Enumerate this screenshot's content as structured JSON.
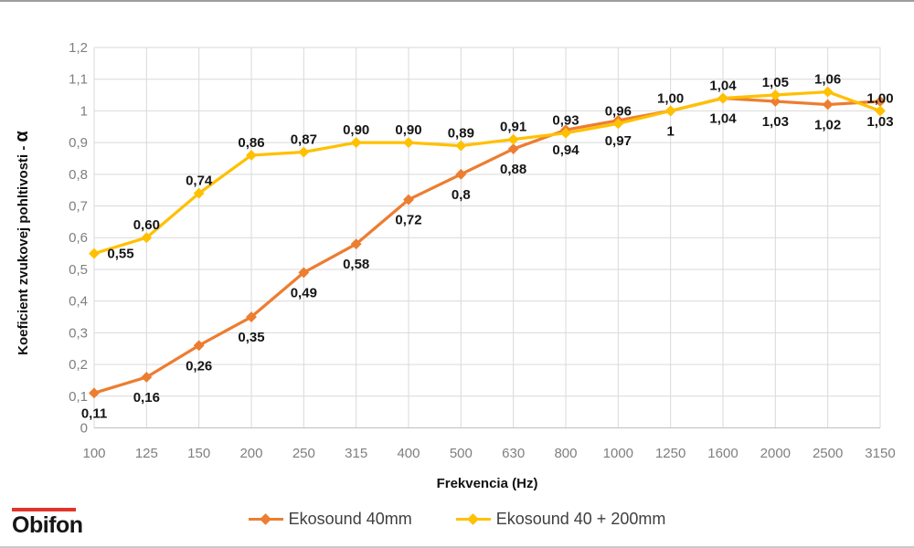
{
  "chart_data": {
    "type": "line",
    "title": "",
    "xlabel": "Frekvencia (Hz)",
    "ylabel": "Koeficient zvukovej pohltivosti - α",
    "ylabel_main": "Koeficient zvukovej pohltivosti - ",
    "ylabel_alpha": "α",
    "categories": [
      "100",
      "125",
      "150",
      "200",
      "250",
      "315",
      "400",
      "500",
      "630",
      "800",
      "1000",
      "1250",
      "1600",
      "2000",
      "2500",
      "3150"
    ],
    "y_ticks": [
      "0",
      "0,1",
      "0,2",
      "0,3",
      "0,4",
      "0,5",
      "0,6",
      "0,7",
      "0,8",
      "0,9",
      "1",
      "1,1",
      "1,2"
    ],
    "ylim": [
      0,
      1.2
    ],
    "grid": true,
    "legend_position": "bottom",
    "series": [
      {
        "name": "Ekosound 40mm",
        "color": "#ED7D31",
        "label_side": "below",
        "values": [
          0.11,
          0.16,
          0.26,
          0.35,
          0.49,
          0.58,
          0.72,
          0.8,
          0.88,
          0.94,
          0.97,
          1,
          1.04,
          1.03,
          1.02,
          1.03
        ],
        "point_labels": [
          "0,11",
          "0,16",
          "0,26",
          "0,35",
          "0,49",
          "0,58",
          "0,72",
          "0,8",
          "0,88",
          "0,94",
          "0,97",
          "1",
          "1,04",
          "1,03",
          "1,02",
          "1,03"
        ]
      },
      {
        "name": "Ekosound 40 + 200mm",
        "color": "#FFC000",
        "label_side": "above",
        "values": [
          0.55,
          0.6,
          0.74,
          0.86,
          0.87,
          0.9,
          0.9,
          0.89,
          0.91,
          0.93,
          0.96,
          1,
          1.04,
          1.05,
          1.06,
          1
        ],
        "point_labels": [
          "0,55",
          "0,60",
          "0,74",
          "0,86",
          "0,87",
          "0,90",
          "0,90",
          "0,89",
          "0,91",
          "0,93",
          "0,96",
          "1,00",
          "1,04",
          "1,05",
          "1,06",
          "1,00"
        ]
      }
    ]
  },
  "logo": {
    "text": "Obifon",
    "bar_color": "#E0342B"
  },
  "colors": {
    "grid": "#D9D9D9",
    "axis": "#BFBFBF",
    "tick_text": "#7F7F7F",
    "data_label_text": "#151515",
    "axis_title_text": "#111111"
  }
}
